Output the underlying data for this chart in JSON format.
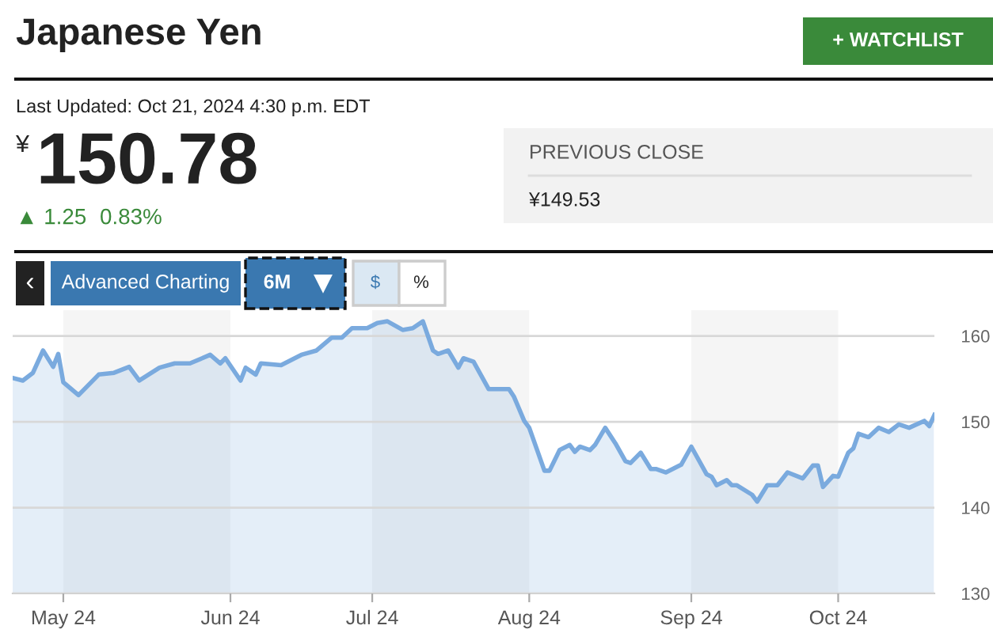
{
  "chart_data": {
    "type": "area",
    "title": "Japanese Yen",
    "annotations": [
      "+ WATCHLIST",
      "Last Updated: Oct 21, 2024 4:30 p.m. EDT",
      "¥",
      "150.78",
      "▲ 1.25",
      "0.83%",
      "PREVIOUS CLOSE",
      "¥149.53",
      "‹",
      "Advanced Charting",
      "6M",
      "$",
      "%"
    ],
    "x": [
      "2024-04-21",
      "2024-04-23",
      "2024-04-25",
      "2024-04-27",
      "2024-04-29",
      "2024-04-30",
      "2024-05-01",
      "2024-05-04",
      "2024-05-08",
      "2024-05-11",
      "2024-05-14",
      "2024-05-16",
      "2024-05-20",
      "2024-05-23",
      "2024-05-26",
      "2024-05-30",
      "2024-06-01",
      "2024-06-02",
      "2024-06-05",
      "2024-06-06",
      "2024-06-08",
      "2024-06-09",
      "2024-06-13",
      "2024-06-17",
      "2024-06-20",
      "2024-06-23",
      "2024-06-25",
      "2024-06-27",
      "2024-06-30",
      "2024-07-02",
      "2024-07-04",
      "2024-07-07",
      "2024-07-09",
      "2024-07-11",
      "2024-07-13",
      "2024-07-14",
      "2024-07-16",
      "2024-07-18",
      "2024-07-19",
      "2024-07-21",
      "2024-07-24",
      "2024-07-28",
      "2024-07-29",
      "2024-07-31",
      "2024-08-01",
      "2024-08-04",
      "2024-08-05",
      "2024-08-07",
      "2024-08-09",
      "2024-08-10",
      "2024-08-11",
      "2024-08-13",
      "2024-08-14",
      "2024-08-16",
      "2024-08-18",
      "2024-08-20",
      "2024-08-21",
      "2024-08-23",
      "2024-08-25",
      "2024-08-26",
      "2024-08-28",
      "2024-08-31",
      "2024-09-02",
      "2024-09-05",
      "2024-09-06",
      "2024-09-07",
      "2024-09-09",
      "2024-09-10",
      "2024-09-11",
      "2024-09-14",
      "2024-09-15",
      "2024-09-17",
      "2024-09-19",
      "2024-09-21",
      "2024-09-24",
      "2024-09-26",
      "2024-09-27",
      "2024-09-28",
      "2024-09-30",
      "2024-10-01",
      "2024-10-03",
      "2024-10-04",
      "2024-10-05",
      "2024-10-07",
      "2024-10-09",
      "2024-10-11",
      "2024-10-13",
      "2024-10-15",
      "2024-10-18",
      "2024-10-19",
      "2024-10-20"
    ],
    "series": [
      {
        "color": "#7aaade",
        "values": [
          155.1,
          154.8,
          155.7,
          158.3,
          156.4,
          157.9,
          154.6,
          153.1,
          155.5,
          155.7,
          156.4,
          154.8,
          156.3,
          156.8,
          156.8,
          157.8,
          156.8,
          157.4,
          154.8,
          156.3,
          155.5,
          156.8,
          156.6,
          157.8,
          158.3,
          159.8,
          159.8,
          160.9,
          160.9,
          161.5,
          161.7,
          160.7,
          160.9,
          161.7,
          158.3,
          157.9,
          158.3,
          156.3,
          157.4,
          157.0,
          153.8,
          153.8,
          152.9,
          150.1,
          149.3,
          144.3,
          144.3,
          146.7,
          147.3,
          146.5,
          147.1,
          146.7,
          147.3,
          149.3,
          147.5,
          145.4,
          145.2,
          146.4,
          144.5,
          144.5,
          144.1,
          145.0,
          147.1,
          143.9,
          143.6,
          142.6,
          143.2,
          142.6,
          142.6,
          141.5,
          140.7,
          142.6,
          142.6,
          144.1,
          143.4,
          144.9,
          144.9,
          142.4,
          143.7,
          143.6,
          146.4,
          146.9,
          148.6,
          148.2,
          149.3,
          148.8,
          149.7,
          149.3,
          150.1,
          149.5,
          150.8
        ]
      }
    ],
    "xlim": [
      "2024-04-21",
      "2024-10-20"
    ],
    "xticks": [
      {
        "value": "2024-05-01",
        "label": "May 24"
      },
      {
        "value": "2024-06-03",
        "label": "Jun 24"
      },
      {
        "value": "2024-07-01",
        "label": "Jul 24"
      },
      {
        "value": "2024-08-01",
        "label": "Aug 24"
      },
      {
        "value": "2024-09-02",
        "label": "Sep 24"
      },
      {
        "value": "2024-10-01",
        "label": "Oct 24"
      }
    ],
    "ylim": [
      130,
      163
    ],
    "yticks": [
      130,
      140,
      150,
      160
    ],
    "grid": "y",
    "bands": [
      {
        "axis": "x",
        "from": "2024-05-01",
        "to": "2024-06-03",
        "label": null,
        "color": "#f5f5f5"
      },
      {
        "axis": "x",
        "from": "2024-07-01",
        "to": "2024-08-01",
        "label": null,
        "color": "#f5f5f5"
      },
      {
        "axis": "x",
        "from": "2024-09-02",
        "to": "2024-10-01",
        "label": null,
        "color": "#f5f5f5"
      }
    ]
  }
}
